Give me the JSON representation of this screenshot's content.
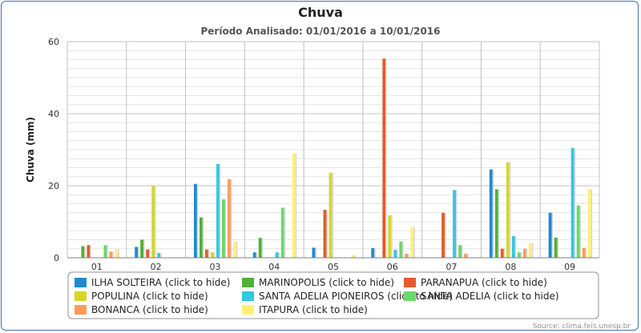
{
  "chart_data": {
    "type": "bar",
    "title": "Chuva",
    "subtitle": "Período Analisado: 01/01/2016 a 10/01/2016",
    "ylabel": "Chuva (mm)",
    "xlabel": "",
    "ylim": [
      0,
      60
    ],
    "yticks": [
      0,
      20,
      40,
      60
    ],
    "grid": true,
    "legend_position": "bottom",
    "credits": "Source: clima.feis.unesp.br",
    "categories": [
      "01",
      "02",
      "03",
      "04",
      "05",
      "06",
      "07",
      "08",
      "09"
    ],
    "series": [
      {
        "name": "ILHA SOLTEIRA (click to hide)",
        "color": "#1f8ad0",
        "values": [
          0,
          3,
          20.5,
          1.5,
          2.8,
          2.7,
          0,
          24.5,
          12.5
        ]
      },
      {
        "name": "MARINOPOLIS (click to hide)",
        "color": "#4fb135",
        "values": [
          3.2,
          5,
          11.2,
          5.5,
          0,
          0,
          0,
          19,
          5.6
        ]
      },
      {
        "name": "PARANAPUA (click to hide)",
        "color": "#e65a2a",
        "values": [
          3.5,
          2.3,
          2.3,
          0,
          13.3,
          55.3,
          12.5,
          2.5,
          0
        ]
      },
      {
        "name": "POPULINA (click to hide)",
        "color": "#d6d62a",
        "values": [
          0,
          20,
          1.5,
          0,
          23.6,
          11.8,
          0,
          26.5,
          0
        ]
      },
      {
        "name": "SANTA ADELIA PIONEIROS (click to hide)",
        "color": "#31c8e0",
        "values": [
          0,
          1.3,
          26,
          1.5,
          0,
          2.2,
          18.8,
          6,
          30.5
        ]
      },
      {
        "name": "SANTA ADELIA (click to hide)",
        "color": "#6ad86a",
        "values": [
          3.5,
          0,
          16.2,
          13.9,
          0,
          4.5,
          3.5,
          1.5,
          14.5
        ]
      },
      {
        "name": "BONANCA (click to hide)",
        "color": "#ff9a58",
        "values": [
          1.7,
          0,
          21.8,
          0,
          0,
          1.1,
          1.1,
          2.5,
          2.7
        ]
      },
      {
        "name": "ITAPURA (click to hide)",
        "color": "#fff075",
        "values": [
          2.4,
          0,
          4.5,
          29,
          0.7,
          8.5,
          0,
          4,
          19
        ]
      }
    ]
  }
}
